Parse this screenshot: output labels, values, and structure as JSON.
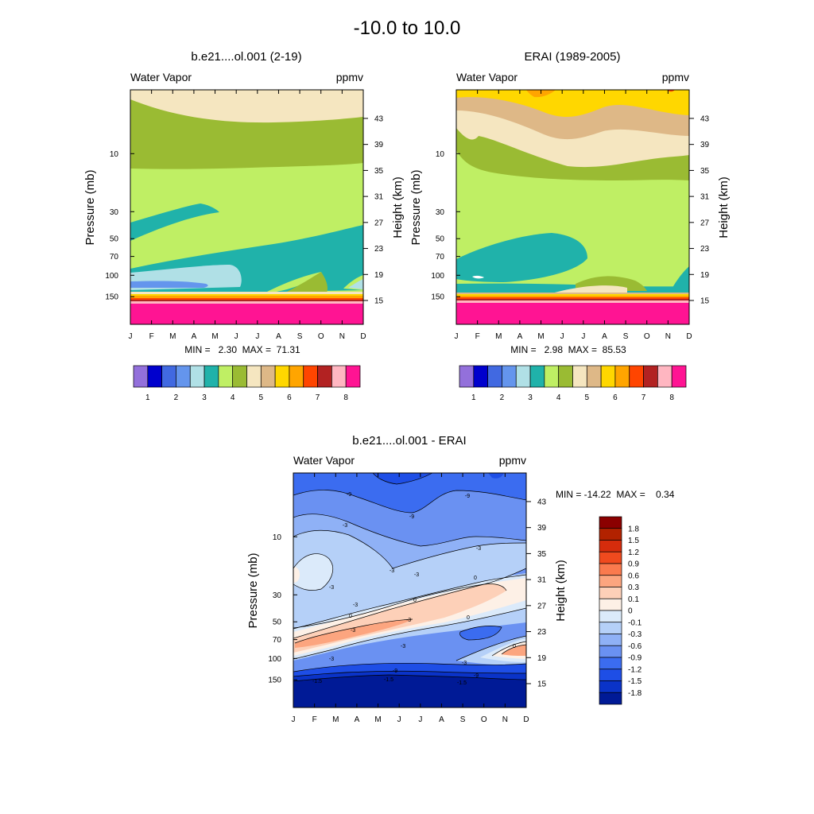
{
  "figure": {
    "title": "-10.0 to  10.0"
  },
  "chart_data": [
    {
      "type": "heatmap",
      "title": "b.e21....ol.001 (2-19)",
      "variable_label": "Water Vapor",
      "units_label": "ppmv",
      "xlabel": "",
      "ylabel": "Pressure (mb)",
      "y2label": "Height (km)",
      "x_ticks": [
        "J",
        "F",
        "M",
        "A",
        "M",
        "J",
        "J",
        "A",
        "S",
        "O",
        "N",
        "D"
      ],
      "pressure_ticks": [
        "10",
        "30",
        "50",
        "70",
        "100",
        "150"
      ],
      "height_ticks": [
        "43",
        "39",
        "35",
        "31",
        "27",
        "23",
        "19",
        "15"
      ],
      "ylim_mb": [
        200,
        2
      ],
      "min_max_text": "MIN =   2.30  MAX =  71.31",
      "min": 2.3,
      "max": 71.31,
      "colorbar_labels": [
        "1",
        "2",
        "3",
        "4",
        "5",
        "6",
        "7",
        "8"
      ],
      "colorbar_colors": [
        "#9370db",
        "#0000cd",
        "#4169e1",
        "#6495ed",
        "#b0e0e6",
        "#20b2aa",
        "#bfef64",
        "#9abb33",
        "#f5e6c0",
        "#deb887",
        "#ffd700",
        "#ffa500",
        "#ff4500",
        "#b22222",
        "#ffb6c1",
        "#ff1493"
      ]
    },
    {
      "type": "heatmap",
      "title": "ERAI (1989-2005)",
      "variable_label": "Water Vapor",
      "units_label": "ppmv",
      "xlabel": "",
      "ylabel": "Pressure (mb)",
      "y2label": "Height (km)",
      "x_ticks": [
        "J",
        "F",
        "M",
        "A",
        "M",
        "J",
        "J",
        "A",
        "S",
        "O",
        "N",
        "D"
      ],
      "pressure_ticks": [
        "10",
        "30",
        "50",
        "70",
        "100",
        "150"
      ],
      "height_ticks": [
        "43",
        "39",
        "35",
        "31",
        "27",
        "23",
        "19",
        "15"
      ],
      "ylim_mb": [
        200,
        2
      ],
      "min_max_text": "MIN =   2.98  MAX =  85.53",
      "min": 2.98,
      "max": 85.53,
      "colorbar_labels": [
        "1",
        "2",
        "3",
        "4",
        "5",
        "6",
        "7",
        "8"
      ],
      "colorbar_colors": [
        "#9370db",
        "#0000cd",
        "#4169e1",
        "#6495ed",
        "#b0e0e6",
        "#20b2aa",
        "#bfef64",
        "#9abb33",
        "#f5e6c0",
        "#deb887",
        "#ffd700",
        "#ffa500",
        "#ff4500",
        "#b22222",
        "#ffb6c1",
        "#ff1493"
      ]
    },
    {
      "type": "heatmap",
      "title": "b.e21....ol.001 - ERAI",
      "variable_label": "Water Vapor",
      "units_label": "ppmv",
      "xlabel": "",
      "ylabel": "Pressure (mb)",
      "y2label": "Height (km)",
      "x_ticks": [
        "J",
        "F",
        "M",
        "A",
        "M",
        "J",
        "J",
        "A",
        "S",
        "O",
        "N",
        "D"
      ],
      "pressure_ticks": [
        "10",
        "30",
        "50",
        "70",
        "100",
        "150"
      ],
      "height_ticks": [
        "43",
        "39",
        "35",
        "31",
        "27",
        "23",
        "19",
        "15"
      ],
      "ylim_mb": [
        200,
        2
      ],
      "min_max_text": "MIN = -14.22  MAX =    0.34",
      "min": -14.22,
      "max": 0.34,
      "colorbar_labels": [
        "1.8",
        "1.5",
        "1.2",
        "0.9",
        "0.6",
        "0.3",
        "0.1",
        "0",
        "-0.1",
        "-0.3",
        "-0.6",
        "-0.9",
        "-1.2",
        "-1.5",
        "-1.8"
      ],
      "colorbar_colors": [
        "#8b0000",
        "#b22200",
        "#d62c0c",
        "#f04a1e",
        "#fa7a4e",
        "#fca57f",
        "#fdd0b8",
        "#fdf0e6",
        "#dbeafa",
        "#b5d0f8",
        "#8fb1f6",
        "#6a91f2",
        "#3b6cf0",
        "#1e4ee6",
        "#0a33c8",
        "#001a96"
      ],
      "contour_labels": [
        "-9",
        "-9",
        "-9",
        "-3",
        "-3",
        "-3",
        "-3",
        "-3",
        "-3",
        "-3",
        "-3",
        "-3",
        "0",
        "0",
        "0",
        "0",
        "0",
        "-3",
        "-3",
        "-9",
        "-9",
        "-1.5",
        "-1.5",
        "-1.5"
      ]
    }
  ]
}
